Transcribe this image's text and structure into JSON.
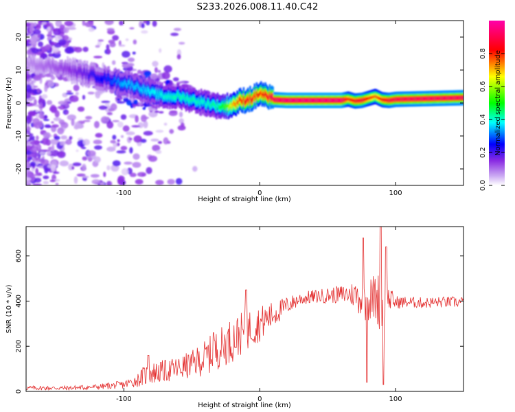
{
  "title": "S233.2026.008.11.40.C42",
  "chart_data": [
    {
      "type": "heatmap",
      "xlabel": "Height of straight line (km)",
      "ylabel": "Frequency (Hz)",
      "xlim": [
        -172,
        150
      ],
      "ylim": [
        -25,
        25
      ],
      "xticks": [
        -100,
        0,
        100
      ],
      "xticklabels": [
        "-100",
        "0",
        "100"
      ],
      "yticks": [
        -20,
        -10,
        0,
        10,
        20
      ],
      "yticklabels": [
        "-20",
        "-10",
        "0",
        "10",
        "20"
      ],
      "colorbar": {
        "label": "Normalized spectral amplitude",
        "range": [
          0,
          1
        ],
        "ticks": [
          0.0,
          0.2,
          0.4,
          0.6,
          0.8
        ],
        "ticklabels": [
          "0.0",
          "0.2",
          "0.4",
          "0.6",
          "0.8"
        ],
        "stops": [
          "#ffffff",
          "#8a2be2",
          "#0000ff",
          "#00ffff",
          "#00ff00",
          "#ffff00",
          "#ff0000",
          "#ff00aa"
        ]
      },
      "ridge": {
        "x": [
          -172,
          -150,
          -130,
          -110,
          -100,
          -90,
          -80,
          -70,
          -60,
          -50,
          -40,
          -30,
          -25,
          -20,
          -15,
          -10,
          -5,
          0,
          5,
          10,
          20,
          40,
          60,
          65,
          70,
          75,
          80,
          85,
          90,
          95,
          100,
          120,
          140,
          150
        ],
        "freq": [
          12,
          11,
          9,
          7,
          6,
          5,
          3,
          2,
          2,
          1,
          0,
          -1,
          -1,
          -0.5,
          0.5,
          1,
          1.5,
          3,
          2,
          1,
          0.8,
          0.8,
          0.8,
          1.2,
          0.6,
          0.8,
          1.4,
          2.0,
          1.0,
          0.8,
          1.1,
          1.3,
          1.5,
          1.6
        ],
        "amplitude": [
          0.08,
          0.12,
          0.18,
          0.28,
          0.35,
          0.35,
          0.38,
          0.4,
          0.42,
          0.42,
          0.4,
          0.45,
          0.55,
          0.7,
          0.8,
          0.85,
          0.85,
          0.8,
          0.85,
          0.92,
          0.95,
          0.95,
          0.95,
          0.8,
          0.85,
          0.88,
          0.8,
          0.75,
          0.82,
          0.88,
          0.9,
          0.92,
          0.92,
          0.92
        ]
      }
    },
    {
      "type": "line",
      "xlabel": "Height of straight line (km)",
      "ylabel": "SNR (10 * v/v)",
      "xlim": [
        -172,
        150
      ],
      "ylim": [
        0,
        730
      ],
      "xticks": [
        -100,
        0,
        100
      ],
      "xticklabels": [
        "-100",
        "0",
        "100"
      ],
      "yticks": [
        0,
        200,
        400,
        600
      ],
      "yticklabels": [
        "0",
        "200",
        "400",
        "600"
      ],
      "color": "#e32d2d",
      "envelope": {
        "x": [
          -172,
          -140,
          -120,
          -100,
          -90,
          -85,
          -80,
          -70,
          -60,
          -50,
          -40,
          -30,
          -20,
          -10,
          0,
          10,
          20,
          30,
          40,
          50,
          60,
          70,
          75,
          80,
          85,
          90,
          95,
          100,
          110,
          120,
          130,
          140,
          150
        ],
        "mean": [
          15,
          15,
          20,
          30,
          50,
          70,
          80,
          90,
          100,
          120,
          150,
          190,
          230,
          270,
          300,
          340,
          380,
          410,
          420,
          425,
          430,
          430,
          410,
          400,
          420,
          390,
          410,
          395,
          395,
          392,
          395,
          395,
          395
        ],
        "noise": [
          10,
          10,
          12,
          18,
          30,
          45,
          50,
          50,
          55,
          60,
          80,
          90,
          100,
          90,
          80,
          60,
          40,
          30,
          30,
          35,
          40,
          60,
          90,
          100,
          110,
          140,
          60,
          30,
          25,
          25,
          25,
          25,
          25
        ]
      },
      "spikes": [
        {
          "x": -82,
          "y": 160
        },
        {
          "x": -34,
          "y": 260
        },
        {
          "x": -10,
          "y": 450
        },
        {
          "x": 76,
          "y": 680
        },
        {
          "x": 79,
          "y": 40
        },
        {
          "x": 89,
          "y": 730
        },
        {
          "x": 91,
          "y": 30
        },
        {
          "x": 93,
          "y": 640
        }
      ]
    }
  ]
}
